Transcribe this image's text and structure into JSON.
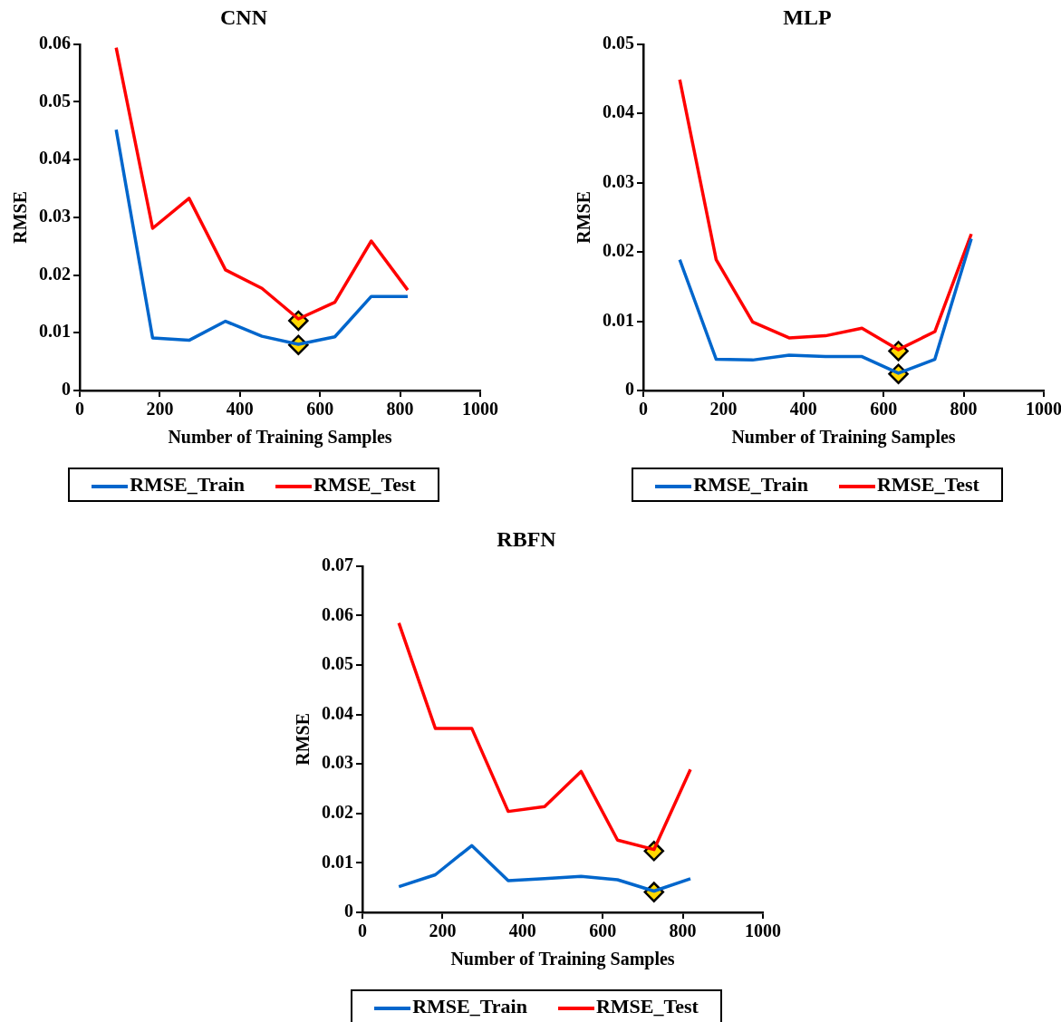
{
  "chart_data": [
    {
      "type": "line",
      "title": "CNN",
      "xlabel": "Number of Training Samples",
      "ylabel": "RMSE",
      "xlim": [
        0,
        1000
      ],
      "xticks": [
        0,
        200,
        400,
        600,
        800,
        1000
      ],
      "ylim": [
        0,
        0.06
      ],
      "yticks": [
        0,
        0.01,
        0.02,
        0.03,
        0.04,
        0.05,
        0.06
      ],
      "grid": false,
      "legend": "bottom",
      "marker": "none",
      "x": [
        91,
        182,
        273,
        364,
        455,
        546,
        637,
        728,
        819
      ],
      "series": [
        {
          "name": "RMSE_Train",
          "color": "#0066cc",
          "values": [
            0.0452,
            0.0091,
            0.0087,
            0.012,
            0.0094,
            0.008,
            0.0093,
            0.0163,
            0.0163
          ]
        },
        {
          "name": "RMSE_Test",
          "color": "#ff0000",
          "values": [
            0.0594,
            0.0281,
            0.0333,
            0.0209,
            0.0177,
            0.0124,
            0.0153,
            0.0259,
            0.0174
          ]
        },
        {
          "type": "scatter",
          "marker": "diamond",
          "color": "#ffd700",
          "x": [
            546,
            546
          ],
          "values": [
            0.0121,
            0.0079
          ]
        }
      ]
    },
    {
      "type": "line",
      "title": "MLP",
      "xlabel": "Number of Training Samples",
      "ylabel": "RMSE",
      "xlim": [
        0,
        1000
      ],
      "xticks": [
        0,
        200,
        400,
        600,
        800,
        1000
      ],
      "ylim": [
        0,
        0.05
      ],
      "yticks": [
        0,
        0.01,
        0.02,
        0.03,
        0.04,
        0.05
      ],
      "grid": false,
      "legend": "bottom",
      "marker": "none",
      "x": [
        91,
        182,
        273,
        364,
        455,
        546,
        637,
        728,
        819
      ],
      "series": [
        {
          "name": "RMSE_Train",
          "color": "#0066cc",
          "values": [
            0.0189,
            0.0045,
            0.0044,
            0.0051,
            0.0049,
            0.0049,
            0.0025,
            0.0045,
            0.0219
          ]
        },
        {
          "name": "RMSE_Test",
          "color": "#ff0000",
          "values": [
            0.0449,
            0.0189,
            0.0099,
            0.0076,
            0.0079,
            0.009,
            0.0059,
            0.0085,
            0.0226
          ]
        },
        {
          "type": "scatter",
          "marker": "diamond",
          "color": "#ffd700",
          "x": [
            637,
            637
          ],
          "values": [
            0.0057,
            0.0024
          ]
        }
      ]
    },
    {
      "type": "line",
      "title": "RBFN",
      "xlabel": "Number of Training Samples",
      "ylabel": "RMSE",
      "xlim": [
        0,
        1000
      ],
      "xticks": [
        0,
        200,
        400,
        600,
        800,
        1000
      ],
      "ylim": [
        0,
        0.07
      ],
      "yticks": [
        0,
        0.01,
        0.02,
        0.03,
        0.04,
        0.05,
        0.06,
        0.07
      ],
      "grid": false,
      "legend": "bottom",
      "marker": "none",
      "x": [
        91,
        182,
        273,
        364,
        455,
        546,
        637,
        728,
        819
      ],
      "series": [
        {
          "name": "RMSE_Train",
          "color": "#0066cc",
          "values": [
            0.0052,
            0.0076,
            0.0135,
            0.0064,
            0.0068,
            0.0073,
            0.0066,
            0.0043,
            0.0068
          ]
        },
        {
          "name": "RMSE_Test",
          "color": "#ff0000",
          "values": [
            0.0585,
            0.0372,
            0.0372,
            0.0204,
            0.0214,
            0.0285,
            0.0146,
            0.0127,
            0.0289
          ]
        },
        {
          "type": "scatter",
          "marker": "diamond",
          "color": "#ffd700",
          "x": [
            728,
            728
          ],
          "values": [
            0.0124,
            0.0041
          ]
        }
      ]
    }
  ]
}
